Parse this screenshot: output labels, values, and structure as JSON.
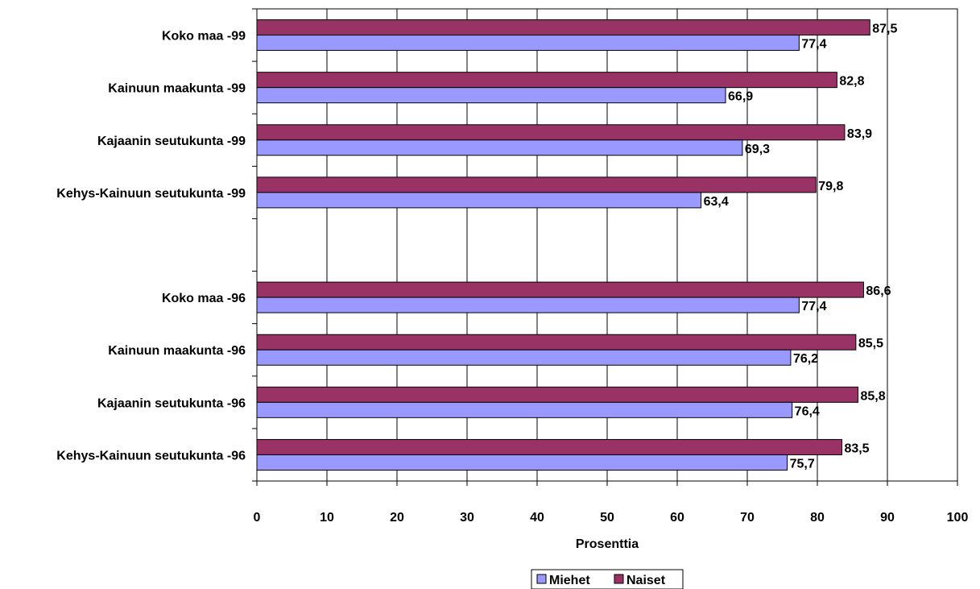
{
  "chart_data": {
    "type": "bar",
    "orientation": "horizontal",
    "categories": [
      "Koko maa -99",
      "Kainuun maakunta -99",
      "Kajaanin seutukunta -99",
      "Kehys-Kainuun seutukunta -99",
      "",
      "Koko maa -96",
      "Kainuun maakunta -96",
      "Kajaanin seutukunta -96",
      "Kehys-Kainuun seutukunta -96"
    ],
    "series": [
      {
        "name": "Miehet",
        "color": "#9999ff",
        "values": [
          77.4,
          66.9,
          69.3,
          63.4,
          null,
          77.4,
          76.2,
          76.4,
          75.7
        ],
        "labels": [
          "77,4",
          "66,9",
          "69,3",
          "63,4",
          "",
          "77,4",
          "76,2",
          "76,4",
          "75,7"
        ]
      },
      {
        "name": "Naiset",
        "color": "#993366",
        "values": [
          87.5,
          82.8,
          83.9,
          79.8,
          null,
          86.6,
          85.5,
          85.8,
          83.5
        ],
        "labels": [
          "87,5",
          "82,8",
          "83,9",
          "79,8",
          "",
          "86,6",
          "85,5",
          "85,8",
          "83,5"
        ]
      }
    ],
    "xlabel": "Prosenttia",
    "xlim": [
      0,
      100
    ],
    "xticks": [
      "0",
      "10",
      "20",
      "30",
      "40",
      "50",
      "60",
      "70",
      "80",
      "90",
      "100"
    ],
    "grid": true,
    "legend": "bottom"
  }
}
